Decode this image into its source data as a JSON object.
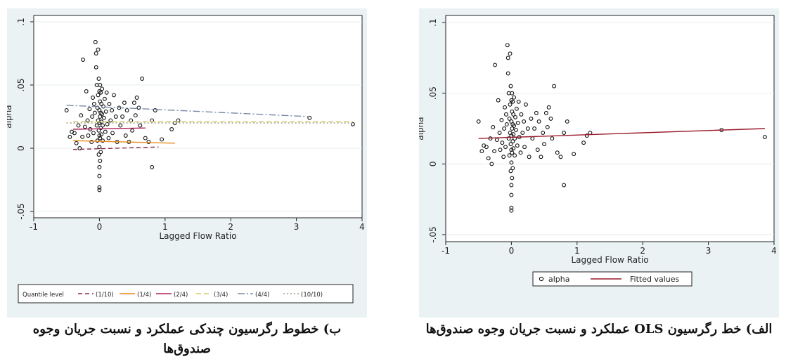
{
  "chart_data": [
    {
      "type": "scatter",
      "xlabel": "Lagged Flow Ratio",
      "ylabel": "alpha",
      "xlim": [
        -1,
        4
      ],
      "ylim": [
        -0.055,
        0.105
      ],
      "xticks": [
        "-1",
        "0",
        "1",
        "2",
        "3",
        "4"
      ],
      "yticks": [
        "-.05",
        "0",
        ".05",
        ".1"
      ],
      "grid": true,
      "legend_position": "bottom",
      "legend_title": "Quantile level",
      "points": [
        [
          -0.5,
          0.03
        ],
        [
          -0.45,
          0.009
        ],
        [
          -0.42,
          0.013
        ],
        [
          -0.38,
          0.012
        ],
        [
          -0.35,
          0.004
        ],
        [
          -0.32,
          0.018
        ],
        [
          -0.3,
          0.0
        ],
        [
          -0.28,
          0.026
        ],
        [
          -0.26,
          0.009
        ],
        [
          -0.25,
          0.07
        ],
        [
          -0.22,
          0.017
        ],
        [
          -0.2,
          0.045
        ],
        [
          -0.18,
          0.022
        ],
        [
          -0.17,
          0.01
        ],
        [
          -0.15,
          0.031
        ],
        [
          -0.14,
          0.015
        ],
        [
          -0.12,
          0.005
        ],
        [
          -0.11,
          0.025
        ],
        [
          -0.1,
          0.04
        ],
        [
          -0.09,
          0.012
        ],
        [
          -0.08,
          0.035
        ],
        [
          -0.07,
          0.028
        ],
        [
          -0.06,
          0.084
        ],
        [
          -0.05,
          0.075
        ],
        [
          -0.05,
          0.064
        ],
        [
          -0.04,
          0.05
        ],
        [
          -0.04,
          0.018
        ],
        [
          -0.03,
          0.032
        ],
        [
          -0.03,
          0.006
        ],
        [
          -0.02,
          0.078
        ],
        [
          -0.02,
          0.042
        ],
        [
          -0.02,
          0.022
        ],
        [
          -0.01,
          0.014
        ],
        [
          -0.01,
          0.055
        ],
        [
          -0.01,
          -0.005
        ],
        [
          0.0,
          0.02
        ],
        [
          0.0,
          0.03
        ],
        [
          0.0,
          0.045
        ],
        [
          0.0,
          0.01
        ],
        [
          0.0,
          -0.015
        ],
        [
          0.0,
          -0.033
        ],
        [
          0.0,
          -0.031
        ],
        [
          0.0,
          -0.022
        ],
        [
          0.0,
          0.001
        ],
        [
          0.01,
          0.025
        ],
        [
          0.01,
          0.037
        ],
        [
          0.01,
          0.05
        ],
        [
          0.01,
          0.008
        ],
        [
          0.01,
          -0.01
        ],
        [
          0.02,
          0.016
        ],
        [
          0.02,
          0.028
        ],
        [
          0.02,
          0.044
        ],
        [
          0.02,
          -0.003
        ],
        [
          0.03,
          0.021
        ],
        [
          0.03,
          0.035
        ],
        [
          0.03,
          0.011
        ],
        [
          0.04,
          0.027
        ],
        [
          0.04,
          0.047
        ],
        [
          0.05,
          0.018
        ],
        [
          0.05,
          0.006
        ],
        [
          0.06,
          0.033
        ],
        [
          0.07,
          0.024
        ],
        [
          0.08,
          0.039
        ],
        [
          0.09,
          0.013
        ],
        [
          0.1,
          0.029
        ],
        [
          0.11,
          0.044
        ],
        [
          0.12,
          0.019
        ],
        [
          0.14,
          0.008
        ],
        [
          0.15,
          0.035
        ],
        [
          0.17,
          0.022
        ],
        [
          0.19,
          0.03
        ],
        [
          0.2,
          0.012
        ],
        [
          0.22,
          0.042
        ],
        [
          0.25,
          0.025
        ],
        [
          0.27,
          0.005
        ],
        [
          0.3,
          0.032
        ],
        [
          0.32,
          0.018
        ],
        [
          0.35,
          0.025
        ],
        [
          0.38,
          0.036
        ],
        [
          0.4,
          0.01
        ],
        [
          0.42,
          0.03
        ],
        [
          0.45,
          0.005
        ],
        [
          0.48,
          0.022
        ],
        [
          0.5,
          0.014
        ],
        [
          0.53,
          0.036
        ],
        [
          0.55,
          0.026
        ],
        [
          0.57,
          0.04
        ],
        [
          0.6,
          0.032
        ],
        [
          0.62,
          0.018
        ],
        [
          0.65,
          0.055
        ],
        [
          0.7,
          0.008
        ],
        [
          0.75,
          0.005
        ],
        [
          0.8,
          0.022
        ],
        [
          0.85,
          0.03
        ],
        [
          0.95,
          0.007
        ],
        [
          1.1,
          0.015
        ],
        [
          1.15,
          0.02
        ],
        [
          1.2,
          0.022
        ],
        [
          0.8,
          -0.015
        ],
        [
          3.2,
          0.024
        ],
        [
          3.86,
          0.019
        ]
      ],
      "series": [
        {
          "name": "(1/10)",
          "color": "#8b2a4a",
          "dash": "6,4",
          "x": [
            -0.4,
            0.9
          ],
          "values": [
            -0.001,
            0.001
          ]
        },
        {
          "name": "(1/4)",
          "color": "#e8891a",
          "dash": "",
          "x": [
            -0.4,
            1.15
          ],
          "values": [
            0.006,
            0.004
          ]
        },
        {
          "name": "(2/4)",
          "color": "#b01e5a",
          "dash": "",
          "x": [
            -0.4,
            0.7
          ],
          "values": [
            0.015,
            0.016
          ]
        },
        {
          "name": "(3/4)",
          "color": "#d8c86a",
          "dash": "7,4",
          "x": [
            -0.4,
            3.86
          ],
          "values": [
            0.021,
            0.021
          ]
        },
        {
          "name": "(4/4)",
          "color": "#7a8aa8",
          "dash": "10,3,2,3",
          "x": [
            -0.5,
            3.2
          ],
          "values": [
            0.034,
            0.025
          ]
        },
        {
          "name": "(10/10)",
          "color": "#a0a080",
          "dash": "2,3",
          "x": [
            -0.5,
            3.86
          ],
          "values": [
            0.02,
            0.02
          ]
        }
      ]
    },
    {
      "type": "scatter",
      "xlabel": "Lagged Flow Ratio",
      "ylabel": "alpha",
      "xlim": [
        -1,
        4
      ],
      "ylim": [
        -0.055,
        0.105
      ],
      "xticks": [
        "-1",
        "0",
        "1",
        "2",
        "3",
        "4"
      ],
      "yticks": [
        "-.05",
        "0",
        ".05",
        ".1"
      ],
      "grid": true,
      "legend_position": "bottom",
      "points_series_name": "alpha",
      "points": [
        [
          -0.5,
          0.03
        ],
        [
          -0.45,
          0.009
        ],
        [
          -0.42,
          0.013
        ],
        [
          -0.38,
          0.012
        ],
        [
          -0.35,
          0.004
        ],
        [
          -0.32,
          0.018
        ],
        [
          -0.3,
          0.0
        ],
        [
          -0.28,
          0.026
        ],
        [
          -0.26,
          0.009
        ],
        [
          -0.25,
          0.07
        ],
        [
          -0.22,
          0.017
        ],
        [
          -0.2,
          0.045
        ],
        [
          -0.18,
          0.022
        ],
        [
          -0.17,
          0.01
        ],
        [
          -0.15,
          0.031
        ],
        [
          -0.14,
          0.015
        ],
        [
          -0.12,
          0.005
        ],
        [
          -0.11,
          0.025
        ],
        [
          -0.1,
          0.04
        ],
        [
          -0.09,
          0.012
        ],
        [
          -0.08,
          0.035
        ],
        [
          -0.07,
          0.028
        ],
        [
          -0.06,
          0.084
        ],
        [
          -0.05,
          0.075
        ],
        [
          -0.05,
          0.064
        ],
        [
          -0.04,
          0.05
        ],
        [
          -0.04,
          0.018
        ],
        [
          -0.03,
          0.032
        ],
        [
          -0.03,
          0.006
        ],
        [
          -0.02,
          0.078
        ],
        [
          -0.02,
          0.042
        ],
        [
          -0.02,
          0.022
        ],
        [
          -0.01,
          0.014
        ],
        [
          -0.01,
          0.055
        ],
        [
          -0.01,
          -0.005
        ],
        [
          0.0,
          0.02
        ],
        [
          0.0,
          0.03
        ],
        [
          0.0,
          0.045
        ],
        [
          0.0,
          0.01
        ],
        [
          0.0,
          -0.015
        ],
        [
          0.0,
          -0.033
        ],
        [
          0.0,
          -0.031
        ],
        [
          0.0,
          -0.022
        ],
        [
          0.0,
          0.001
        ],
        [
          0.01,
          0.025
        ],
        [
          0.01,
          0.037
        ],
        [
          0.01,
          0.05
        ],
        [
          0.01,
          0.008
        ],
        [
          0.01,
          -0.01
        ],
        [
          0.02,
          0.016
        ],
        [
          0.02,
          0.028
        ],
        [
          0.02,
          0.044
        ],
        [
          0.02,
          -0.003
        ],
        [
          0.03,
          0.021
        ],
        [
          0.03,
          0.035
        ],
        [
          0.03,
          0.011
        ],
        [
          0.04,
          0.027
        ],
        [
          0.04,
          0.047
        ],
        [
          0.05,
          0.018
        ],
        [
          0.05,
          0.006
        ],
        [
          0.06,
          0.033
        ],
        [
          0.07,
          0.024
        ],
        [
          0.08,
          0.039
        ],
        [
          0.09,
          0.013
        ],
        [
          0.1,
          0.029
        ],
        [
          0.11,
          0.044
        ],
        [
          0.12,
          0.019
        ],
        [
          0.14,
          0.008
        ],
        [
          0.15,
          0.035
        ],
        [
          0.17,
          0.022
        ],
        [
          0.19,
          0.03
        ],
        [
          0.2,
          0.012
        ],
        [
          0.22,
          0.042
        ],
        [
          0.25,
          0.025
        ],
        [
          0.27,
          0.005
        ],
        [
          0.3,
          0.032
        ],
        [
          0.32,
          0.018
        ],
        [
          0.35,
          0.025
        ],
        [
          0.38,
          0.036
        ],
        [
          0.4,
          0.01
        ],
        [
          0.42,
          0.03
        ],
        [
          0.45,
          0.005
        ],
        [
          0.48,
          0.022
        ],
        [
          0.5,
          0.014
        ],
        [
          0.53,
          0.036
        ],
        [
          0.55,
          0.026
        ],
        [
          0.57,
          0.04
        ],
        [
          0.6,
          0.032
        ],
        [
          0.62,
          0.018
        ],
        [
          0.65,
          0.055
        ],
        [
          0.7,
          0.008
        ],
        [
          0.75,
          0.005
        ],
        [
          0.8,
          0.022
        ],
        [
          0.85,
          0.03
        ],
        [
          0.95,
          0.007
        ],
        [
          1.1,
          0.015
        ],
        [
          1.15,
          0.02
        ],
        [
          1.2,
          0.022
        ],
        [
          0.8,
          -0.015
        ],
        [
          3.2,
          0.024
        ],
        [
          3.86,
          0.019
        ]
      ],
      "series": [
        {
          "name": "Fitted values",
          "color": "#9a1b2c",
          "dash": "",
          "x": [
            -0.5,
            3.86
          ],
          "values": [
            0.018,
            0.025
          ]
        }
      ]
    }
  ],
  "captions": {
    "b": "ب) خطوط رگرسیون چندکی عملکرد و نسبت جریان وجوه صندوق‌ها",
    "a": "الف) خط رگرسیون OLS عملکرد و نسبت جریان وجوه صندوق‌ها"
  }
}
